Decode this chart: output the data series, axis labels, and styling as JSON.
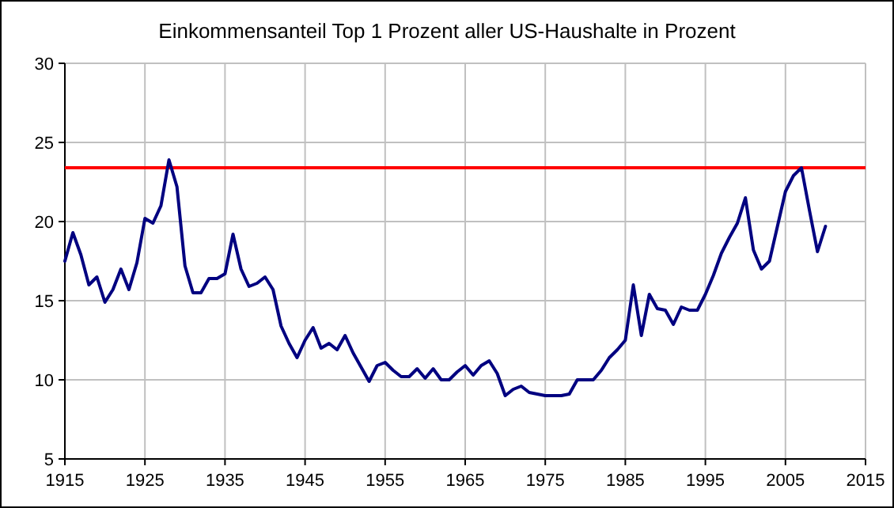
{
  "chart_data": {
    "type": "line",
    "title": "Einkommensanteil Top 1 Prozent aller US-Haushalte in Prozent",
    "x": [
      1915,
      1916,
      1917,
      1918,
      1919,
      1920,
      1921,
      1922,
      1923,
      1924,
      1925,
      1926,
      1927,
      1928,
      1929,
      1930,
      1931,
      1932,
      1933,
      1934,
      1935,
      1936,
      1937,
      1938,
      1939,
      1940,
      1941,
      1942,
      1943,
      1944,
      1945,
      1946,
      1947,
      1948,
      1949,
      1950,
      1951,
      1952,
      1953,
      1954,
      1955,
      1956,
      1957,
      1958,
      1959,
      1960,
      1961,
      1962,
      1963,
      1964,
      1965,
      1966,
      1967,
      1968,
      1969,
      1970,
      1971,
      1972,
      1973,
      1974,
      1975,
      1976,
      1977,
      1978,
      1979,
      1980,
      1981,
      1982,
      1983,
      1984,
      1985,
      1986,
      1987,
      1988,
      1989,
      1990,
      1991,
      1992,
      1993,
      1994,
      1995,
      1996,
      1997,
      1998,
      1999,
      2000,
      2001,
      2002,
      2003,
      2004,
      2005,
      2006,
      2007,
      2008,
      2009,
      2010
    ],
    "series": [
      {
        "color": "#000080",
        "values": [
          17.5,
          19.3,
          17.9,
          16.0,
          16.5,
          14.9,
          15.7,
          17.0,
          15.7,
          17.4,
          20.2,
          19.9,
          21.0,
          23.9,
          22.2,
          17.2,
          15.5,
          15.5,
          16.4,
          16.4,
          16.7,
          19.2,
          17.0,
          15.9,
          16.1,
          16.5,
          15.7,
          13.4,
          12.3,
          11.4,
          12.5,
          13.3,
          12.0,
          12.3,
          11.9,
          12.8,
          11.7,
          10.8,
          9.9,
          10.9,
          11.1,
          10.6,
          10.2,
          10.2,
          10.7,
          10.1,
          10.7,
          10.0,
          10.0,
          10.5,
          10.9,
          10.3,
          10.9,
          11.2,
          10.4,
          9.0,
          9.4,
          9.6,
          9.2,
          9.1,
          9.0,
          9.0,
          9.0,
          9.1,
          10.0,
          10.0,
          10.0,
          10.6,
          11.4,
          11.9,
          12.5,
          16.0,
          12.8,
          15.4,
          14.5,
          14.4,
          13.5,
          14.6,
          14.4,
          14.4,
          15.4,
          16.6,
          18.0,
          19.0,
          19.9,
          21.5,
          18.2,
          17.0,
          17.5,
          19.7,
          21.9,
          22.9,
          23.4,
          20.7,
          18.1,
          19.7
        ]
      }
    ],
    "xlim": [
      1915,
      2015
    ],
    "xticks": [
      1915,
      1925,
      1935,
      1945,
      1955,
      1965,
      1975,
      1985,
      1995,
      2005,
      2015
    ],
    "ylim": [
      5,
      30
    ],
    "yticks": [
      5,
      10,
      15,
      20,
      25,
      30
    ],
    "ref_lines": [
      {
        "axis": "y",
        "value": 23.4,
        "color": "#ff0000"
      }
    ],
    "grid": true,
    "marker": "none",
    "line_style": "solid"
  }
}
